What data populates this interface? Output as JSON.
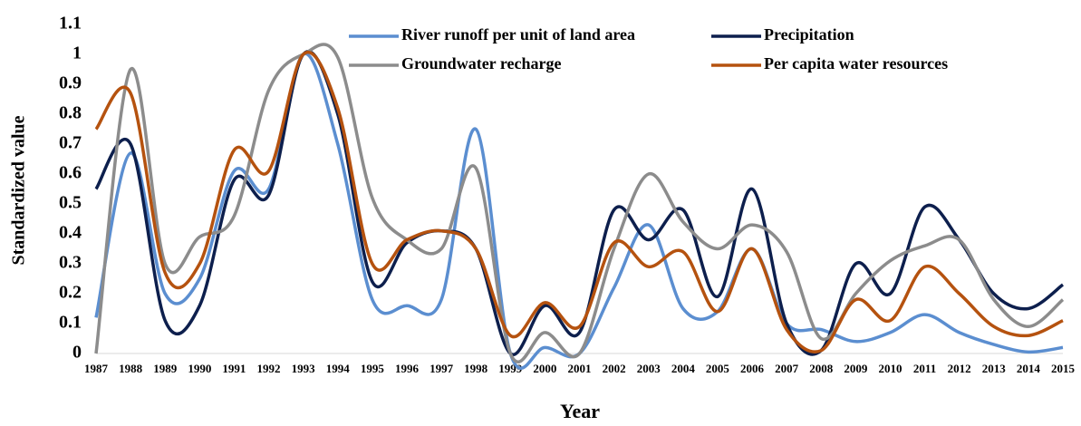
{
  "chart_data": {
    "type": "line",
    "xlabel": "Year",
    "ylabel": "Standardized value",
    "x": [
      1987,
      1988,
      1989,
      1990,
      1991,
      1992,
      1993,
      1994,
      1995,
      1996,
      1997,
      1998,
      1999,
      2000,
      2001,
      2002,
      2003,
      2004,
      2005,
      2006,
      2007,
      2008,
      2009,
      2010,
      2011,
      2012,
      2013,
      2014,
      2015
    ],
    "xlim": [
      1987,
      2015
    ],
    "ylim": [
      0,
      1.1
    ],
    "yticks": [
      0,
      0.1,
      0.2,
      0.3,
      0.4,
      0.5,
      0.6,
      0.7,
      0.8,
      0.9,
      1,
      1.1
    ],
    "smooth": true,
    "series": [
      {
        "name": "River runoff per unit of land area",
        "color": "#5b8ed0",
        "values": [
          0.12,
          0.67,
          0.2,
          0.25,
          0.61,
          0.55,
          1.0,
          0.7,
          0.18,
          0.16,
          0.18,
          0.75,
          0,
          0.02,
          0,
          0.22,
          0.43,
          0.15,
          0.14,
          0.35,
          0.1,
          0.08,
          0.04,
          0.07,
          0.13,
          0.07,
          0.03,
          0.005,
          0.02
        ]
      },
      {
        "name": "Precipitation",
        "color": "#0d1f4d",
        "values": [
          0.55,
          0.7,
          0.11,
          0.16,
          0.58,
          0.53,
          1.0,
          0.8,
          0.24,
          0.37,
          0.41,
          0.35,
          0,
          0.16,
          0.07,
          0.48,
          0.38,
          0.48,
          0.19,
          0.55,
          0.1,
          0.01,
          0.3,
          0.2,
          0.49,
          0.38,
          0.2,
          0.15,
          0.23
        ]
      },
      {
        "name": "Groundwater recharge",
        "color": "#8c8c8c",
        "values": [
          0,
          0.95,
          0.3,
          0.39,
          0.46,
          0.88,
          1.0,
          0.99,
          0.52,
          0.38,
          0.35,
          0.62,
          0,
          0.07,
          0,
          0.35,
          0.6,
          0.44,
          0.35,
          0.43,
          0.34,
          0.05,
          0.2,
          0.31,
          0.36,
          0.38,
          0.18,
          0.09,
          0.18
        ]
      },
      {
        "name": "Per capita water resources",
        "color": "#b5520f",
        "values": [
          0.75,
          0.87,
          0.27,
          0.3,
          0.68,
          0.61,
          1.0,
          0.82,
          0.3,
          0.38,
          0.41,
          0.35,
          0.06,
          0.17,
          0.09,
          0.37,
          0.29,
          0.34,
          0.14,
          0.35,
          0.08,
          0.01,
          0.18,
          0.11,
          0.29,
          0.2,
          0.09,
          0.06,
          0.11
        ]
      }
    ]
  }
}
